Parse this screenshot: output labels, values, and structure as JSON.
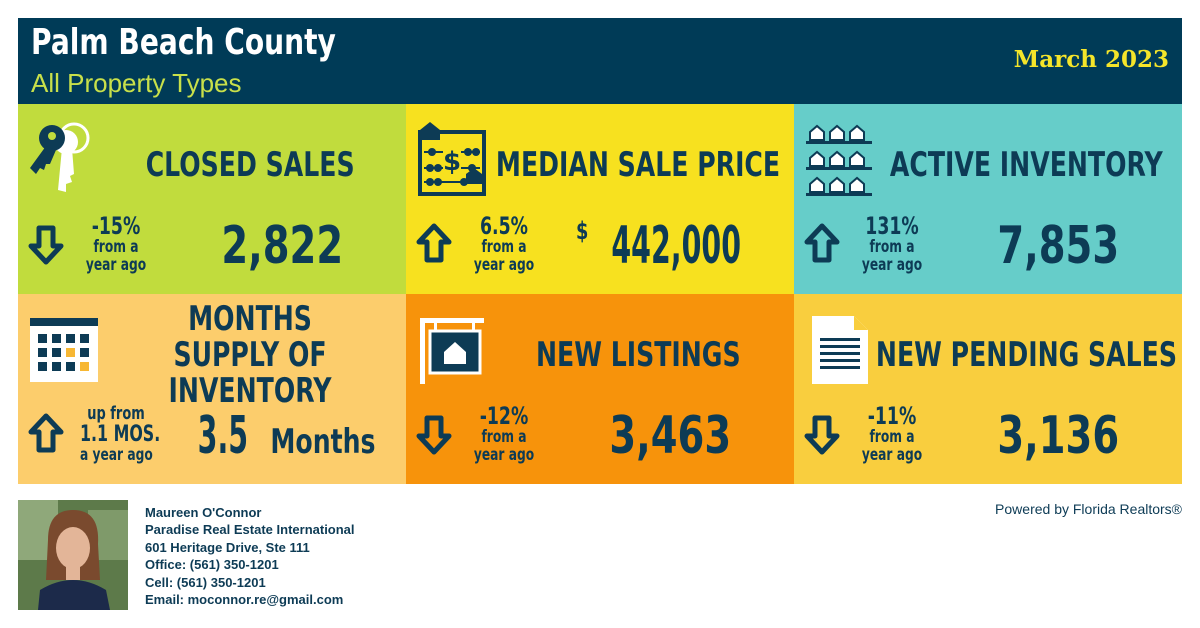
{
  "header": {
    "title": "Palm Beach County",
    "subtitle": "All Property Types",
    "date": "March 2023"
  },
  "colors": {
    "navy": "#003b57",
    "text": "#0d3b55",
    "lime": "#c1dc3d",
    "yellow": "#f7e11f",
    "teal": "#66cdc9",
    "peach": "#fccd6c",
    "orange": "#f7930b",
    "gold": "#f9ce3e"
  },
  "tiles": [
    {
      "title": "CLOSED SALES",
      "icon": "keys-icon",
      "direction": "down",
      "change": "-15%",
      "change_sub1": "from a",
      "change_sub2": "year ago",
      "value": "2,822"
    },
    {
      "title": "MEDIAN SALE PRICE",
      "icon": "abacus-icon",
      "direction": "up",
      "change": "6.5%",
      "change_sub1": "from a",
      "change_sub2": "year ago",
      "value_prefix": "$",
      "value": "442,000"
    },
    {
      "title": "ACTIVE INVENTORY",
      "icon": "houses-rows-icon",
      "direction": "up",
      "change": "131%",
      "change_sub1": "from a",
      "change_sub2": "year ago",
      "value": "7,853"
    },
    {
      "title": "MONTHS SUPPLY OF INVENTORY",
      "icon": "calendar-icon",
      "direction": "up",
      "change": "up from",
      "change_sub1": "1.1 MOS.",
      "change_sub2": "a year ago",
      "value": "3.5",
      "value_unit": "Months"
    },
    {
      "title": "NEW LISTINGS",
      "icon": "listing-sign-icon",
      "direction": "down",
      "change": "-12%",
      "change_sub1": "from a",
      "change_sub2": "year ago",
      "value": "3,463"
    },
    {
      "title": "NEW PENDING SALES",
      "icon": "document-icon",
      "direction": "down",
      "change": "-11%",
      "change_sub1": "from a",
      "change_sub2": "year ago",
      "value": "3,136"
    }
  ],
  "agent": {
    "name": "Maureen O'Connor",
    "company": "Paradise Real Estate International",
    "address": "601 Heritage Drive, Ste 111",
    "office": "Office: (561) 350-1201",
    "cell": "Cell: (561) 350-1201",
    "email": "Email: moconnor.re@gmail.com"
  },
  "powered_by": "Powered by Florida Realtors®"
}
